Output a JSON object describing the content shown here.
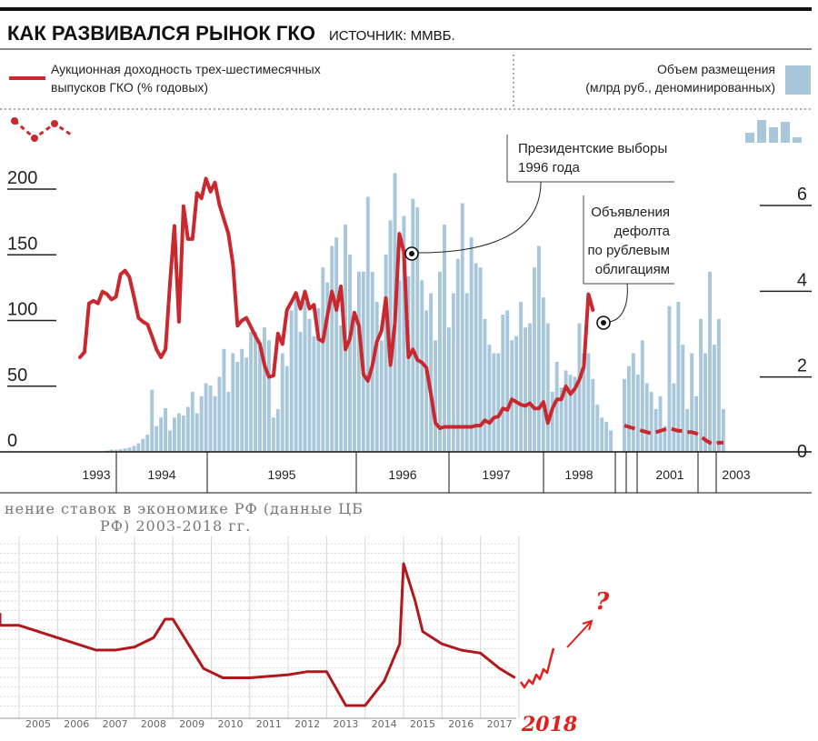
{
  "chart_data": [
    {
      "type": "bar+line",
      "title": "КАК РАЗВИВАЛСЯ РЫНОК ГКО",
      "subtitle": "ИСТОЧНИК: ММВБ.",
      "legend_line": [
        "Аукционная доходность трех-шестимесячных",
        "выпусков ГКО (% годовых)"
      ],
      "legend_bars": [
        "Объем размещения",
        "(млрд руб., деноминированных)"
      ],
      "colors": {
        "line": "#c8282e",
        "bars": "#a9c7da"
      },
      "left_axis": {
        "ticks": [
          "200",
          "150",
          "100",
          "50",
          "0"
        ],
        "range": [
          0,
          200
        ]
      },
      "right_axis": {
        "ticks": [
          "6",
          "4",
          "2",
          "0"
        ],
        "range": [
          0,
          6
        ]
      },
      "x_years": [
        "1993",
        "1994",
        "1995",
        "1996",
        "1997",
        "1998",
        "2001",
        "2003"
      ],
      "line_series": [
        {
          "t": 0,
          "v": 72
        },
        {
          "t": 1,
          "v": 76
        },
        {
          "t": 2,
          "v": 113
        },
        {
          "t": 3,
          "v": 115
        },
        {
          "t": 4,
          "v": 113
        },
        {
          "t": 5,
          "v": 122
        },
        {
          "t": 6,
          "v": 120
        },
        {
          "t": 7,
          "v": 116
        },
        {
          "t": 8,
          "v": 118
        },
        {
          "t": 9,
          "v": 135
        },
        {
          "t": 10,
          "v": 138
        },
        {
          "t": 11,
          "v": 133
        },
        {
          "t": 12,
          "v": 118
        },
        {
          "t": 13,
          "v": 102
        },
        {
          "t": 14,
          "v": 99
        },
        {
          "t": 15,
          "v": 97
        },
        {
          "t": 16,
          "v": 88
        },
        {
          "t": 17,
          "v": 78
        },
        {
          "t": 18,
          "v": 72
        },
        {
          "t": 19,
          "v": 78
        },
        {
          "t": 20,
          "v": 128
        },
        {
          "t": 21,
          "v": 172
        },
        {
          "t": 22,
          "v": 99
        },
        {
          "t": 23,
          "v": 187
        },
        {
          "t": 24,
          "v": 162
        },
        {
          "t": 25,
          "v": 162
        },
        {
          "t": 26,
          "v": 197
        },
        {
          "t": 27,
          "v": 193
        },
        {
          "t": 28,
          "v": 208
        },
        {
          "t": 29,
          "v": 198
        },
        {
          "t": 30,
          "v": 205
        },
        {
          "t": 31,
          "v": 188
        },
        {
          "t": 32,
          "v": 177
        },
        {
          "t": 33,
          "v": 166
        },
        {
          "t": 34,
          "v": 143
        },
        {
          "t": 35,
          "v": 96
        },
        {
          "t": 36,
          "v": 100
        },
        {
          "t": 37,
          "v": 102
        },
        {
          "t": 38,
          "v": 95
        },
        {
          "t": 39,
          "v": 88
        },
        {
          "t": 40,
          "v": 82
        },
        {
          "t": 41,
          "v": 66
        },
        {
          "t": 42,
          "v": 57
        },
        {
          "t": 43,
          "v": 58
        },
        {
          "t": 44,
          "v": 90
        },
        {
          "t": 45,
          "v": 82
        },
        {
          "t": 46,
          "v": 108
        },
        {
          "t": 47,
          "v": 114
        },
        {
          "t": 48,
          "v": 121
        },
        {
          "t": 49,
          "v": 109
        },
        {
          "t": 50,
          "v": 122
        },
        {
          "t": 51,
          "v": 109
        },
        {
          "t": 52,
          "v": 112
        },
        {
          "t": 53,
          "v": 86
        },
        {
          "t": 54,
          "v": 84
        },
        {
          "t": 55,
          "v": 104
        },
        {
          "t": 56,
          "v": 122
        },
        {
          "t": 57,
          "v": 108
        },
        {
          "t": 58,
          "v": 126
        },
        {
          "t": 59,
          "v": 78
        },
        {
          "t": 60,
          "v": 86
        },
        {
          "t": 61,
          "v": 106
        },
        {
          "t": 62,
          "v": 96
        },
        {
          "t": 63,
          "v": 59
        },
        {
          "t": 64,
          "v": 54
        },
        {
          "t": 65,
          "v": 66
        },
        {
          "t": 66,
          "v": 84
        },
        {
          "t": 67,
          "v": 92
        },
        {
          "t": 68,
          "v": 117
        },
        {
          "t": 69,
          "v": 66
        },
        {
          "t": 70,
          "v": 98
        },
        {
          "t": 71,
          "v": 166
        },
        {
          "t": 72,
          "v": 152
        },
        {
          "t": 73,
          "v": 72
        },
        {
          "t": 74,
          "v": 78
        },
        {
          "t": 75,
          "v": 70
        },
        {
          "t": 76,
          "v": 68
        },
        {
          "t": 77,
          "v": 64
        },
        {
          "t": 78,
          "v": 44
        },
        {
          "t": 79,
          "v": 22
        },
        {
          "t": 80,
          "v": 18
        },
        {
          "t": 81,
          "v": 19
        },
        {
          "t": 82,
          "v": 19
        },
        {
          "t": 83,
          "v": 19
        },
        {
          "t": 84,
          "v": 19
        },
        {
          "t": 85,
          "v": 19
        },
        {
          "t": 86,
          "v": 19
        },
        {
          "t": 87,
          "v": 19
        },
        {
          "t": 88,
          "v": 20
        },
        {
          "t": 89,
          "v": 20
        },
        {
          "t": 90,
          "v": 24
        },
        {
          "t": 91,
          "v": 22
        },
        {
          "t": 92,
          "v": 26
        },
        {
          "t": 93,
          "v": 27
        },
        {
          "t": 94,
          "v": 33
        },
        {
          "t": 95,
          "v": 32
        },
        {
          "t": 96,
          "v": 40
        },
        {
          "t": 97,
          "v": 38
        },
        {
          "t": 98,
          "v": 36
        },
        {
          "t": 99,
          "v": 35
        },
        {
          "t": 100,
          "v": 37
        },
        {
          "t": 101,
          "v": 33
        },
        {
          "t": 102,
          "v": 33
        },
        {
          "t": 103,
          "v": 38
        },
        {
          "t": 104,
          "v": 22
        },
        {
          "t": 105,
          "v": 33
        },
        {
          "t": 106,
          "v": 40
        },
        {
          "t": 107,
          "v": 40
        },
        {
          "t": 108,
          "v": 50
        },
        {
          "t": 109,
          "v": 44
        },
        {
          "t": 110,
          "v": 48
        },
        {
          "t": 111,
          "v": 55
        },
        {
          "t": 112,
          "v": 65
        },
        {
          "t": 113,
          "v": 120
        },
        {
          "t": 114,
          "v": 108
        }
      ],
      "line_series_late": [
        {
          "t": 121,
          "v": 20
        },
        {
          "t": 122,
          "v": 19
        },
        {
          "t": 123,
          "v": 18
        },
        {
          "t": 124,
          "v": 17
        },
        {
          "t": 125,
          "v": 16
        },
        {
          "t": 126,
          "v": 15
        },
        {
          "t": 127,
          "v": 14
        },
        {
          "t": 128,
          "v": 15
        },
        {
          "t": 129,
          "v": 16
        },
        {
          "t": 130,
          "v": 17
        },
        {
          "t": 131,
          "v": 18
        },
        {
          "t": 132,
          "v": 17
        },
        {
          "t": 133,
          "v": 16
        },
        {
          "t": 134,
          "v": 16
        },
        {
          "t": 135,
          "v": 15
        },
        {
          "t": 136,
          "v": 15
        },
        {
          "t": 137,
          "v": 14
        },
        {
          "t": 138,
          "v": 12
        },
        {
          "t": 139,
          "v": 9
        },
        {
          "t": 140,
          "v": 7
        },
        {
          "t": 141,
          "v": 6
        },
        {
          "t": 142,
          "v": 7
        },
        {
          "t": 143,
          "v": 7
        }
      ],
      "bar_values": [
        0,
        0,
        0,
        0,
        0,
        0,
        0.03,
        0.05,
        0.05,
        0.06,
        0.08,
        0.1,
        0.14,
        0.2,
        0.3,
        0.4,
        1.45,
        0.6,
        0.8,
        1.02,
        0.5,
        0.8,
        0.9,
        0.85,
        1.05,
        1.4,
        0.9,
        1.3,
        1.6,
        1.55,
        1.3,
        1.75,
        2.4,
        1.4,
        2.3,
        2.1,
        2.4,
        2.2,
        2.8,
        2.8,
        2.55,
        2.9,
        2.6,
        0.8,
        1.0,
        2.3,
        2.0,
        3.3,
        3.65,
        2.8,
        3.5,
        3.1,
        2.7,
        3.35,
        4.3,
        3.95,
        4.8,
        5.0,
        2.95,
        5.3,
        4.6,
        3.2,
        4.2,
        4.2,
        5.95,
        4.2,
        3.5,
        2.6,
        4.6,
        5.4,
        6.5,
        4.0,
        5.5,
        4.1,
        5.9,
        5.7,
        4.0,
        3.3,
        3.7,
        2.6,
        4.2,
        5.3,
        2.9,
        3.7,
        4.5,
        5.8,
        3.7,
        5.0,
        4.4,
        4.3,
        3.1,
        2.5,
        2.3,
        2.3,
        3.2,
        3.3,
        2.6,
        2.7,
        3.5,
        2.9,
        3.0,
        4.3,
        4.8,
        3.6,
        3.0,
        1.4,
        2.1,
        1.5,
        1.9,
        1.8,
        1.75,
        3.0,
        2.3,
        2.3,
        1.7,
        1.1,
        0.8,
        0.7,
        0.5,
        0,
        0,
        0,
        0,
        0,
        0,
        0,
        0,
        0,
        0,
        0,
        0,
        0,
        0,
        0,
        0,
        0,
        0,
        0,
        0
      ],
      "bar_values_late": [
        {
          "t": 121,
          "v": 1.7
        },
        {
          "t": 122,
          "v": 2.0
        },
        {
          "t": 123,
          "v": 2.3
        },
        {
          "t": 124,
          "v": 1.8
        },
        {
          "t": 125,
          "v": 2.6
        },
        {
          "t": 126,
          "v": 1.6
        },
        {
          "t": 127,
          "v": 1.4
        },
        {
          "t": 128,
          "v": 1.0
        },
        {
          "t": 129,
          "v": 1.3
        },
        {
          "t": 130,
          "v": 0.6
        },
        {
          "t": 131,
          "v": 3.4
        },
        {
          "t": 132,
          "v": 1.6
        },
        {
          "t": 133,
          "v": 3.5
        },
        {
          "t": 134,
          "v": 2.5
        },
        {
          "t": 135,
          "v": 1.0
        },
        {
          "t": 136,
          "v": 2.3
        },
        {
          "t": 137,
          "v": 1.3
        },
        {
          "t": 138,
          "v": 3.1
        },
        {
          "t": 139,
          "v": 2.3
        },
        {
          "t": 140,
          "v": 4.2
        },
        {
          "t": 141,
          "v": 2.5
        },
        {
          "t": 142,
          "v": 3.1
        },
        {
          "t": 143,
          "v": 1.0
        }
      ],
      "annotations": [
        {
          "lines": [
            "Президентские выборы",
            "1996 года"
          ]
        },
        {
          "lines": [
            "Объявления",
            "дефолта",
            "по рублевым",
            "облигациям"
          ]
        }
      ]
    },
    {
      "type": "line",
      "title_lines": [
        "нение ставок в экономике РФ (данные ЦБ",
        "РФ) 2003-2018 гг."
      ],
      "categories": [
        "2005",
        "2006",
        "2007",
        "2008",
        "2009",
        "2010",
        "2011",
        "2012",
        "2013",
        "2014",
        "2015",
        "2016",
        "2017"
      ],
      "x": [
        2003.0,
        2004.0,
        2005.0,
        2006.0,
        2007.0,
        2007.5,
        2008.0,
        2008.5,
        2008.8,
        2009.0,
        2009.4,
        2009.8,
        2010.3,
        2011.0,
        2012.0,
        2012.5,
        2013.0,
        2013.5,
        2014.0,
        2014.5,
        2014.9,
        2015.0,
        2015.3,
        2015.5,
        2016.0,
        2016.5,
        2017.0,
        2017.5,
        2017.9
      ],
      "values": [
        13.0,
        12.0,
        12.0,
        11.0,
        10.0,
        10.0,
        10.25,
        11.0,
        12.5,
        12.5,
        10.5,
        8.5,
        7.75,
        7.75,
        8.0,
        8.25,
        8.25,
        5.5,
        5.5,
        7.5,
        10.5,
        17.0,
        14.0,
        11.5,
        10.5,
        10.0,
        9.75,
        8.5,
        7.75
      ],
      "handwritten": {
        "year": "2018",
        "mark": "?"
      },
      "colors": {
        "line": "#b0181d",
        "hand": "#e0201c",
        "grid": "#d6d6d6"
      }
    }
  ]
}
